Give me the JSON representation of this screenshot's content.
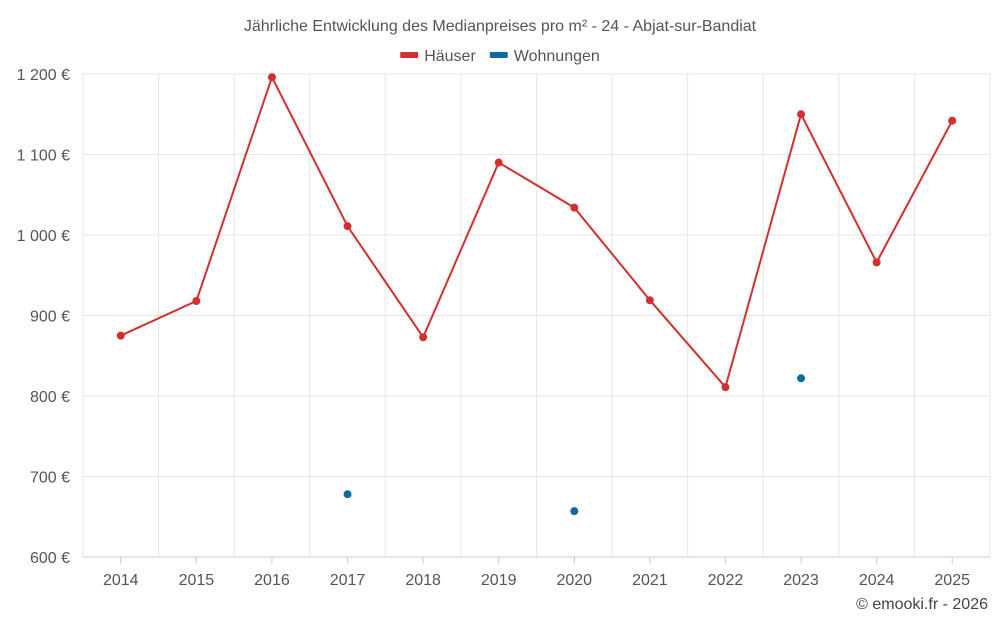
{
  "chart_data": {
    "type": "line",
    "title": "Jährliche Entwicklung des Medianpreises pro m² - 24 - Abjat-sur-Bandiat",
    "categories": [
      "2014",
      "2015",
      "2016",
      "2017",
      "2018",
      "2019",
      "2020",
      "2021",
      "2022",
      "2023",
      "2024",
      "2025"
    ],
    "series": [
      {
        "name": "Häuser",
        "color": "#d32f2f",
        "values": [
          875,
          918,
          1196,
          1011,
          873,
          1090,
          1034,
          919,
          811,
          1150,
          966,
          1142
        ]
      },
      {
        "name": "Wohnungen",
        "color": "#0d6aa0",
        "values": [
          null,
          null,
          null,
          678,
          null,
          null,
          657,
          null,
          null,
          822,
          null,
          null
        ]
      }
    ],
    "ylim": [
      600,
      1200
    ],
    "yticks": [
      600,
      700,
      800,
      900,
      1000,
      1100,
      1200
    ],
    "ytick_labels": [
      "600 €",
      "700 €",
      "800 €",
      "900 €",
      "1 000 €",
      "1 100 €",
      "1 200 €"
    ],
    "grid": true,
    "legend_position": "top-center"
  },
  "credit": "© emooki.fr - 2026"
}
